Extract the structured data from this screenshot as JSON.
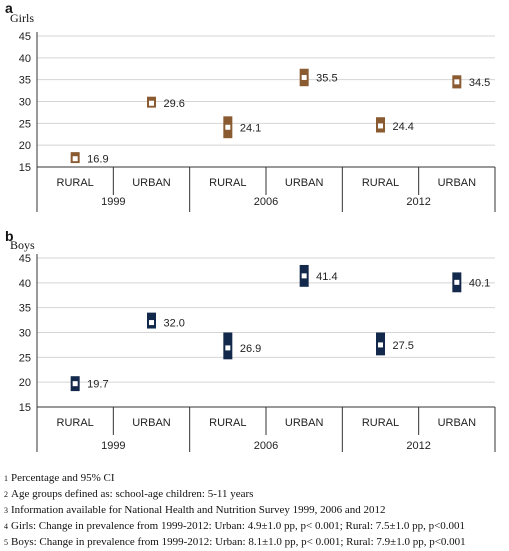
{
  "chart_data": [
    {
      "type": "scatter",
      "panel_letter": "a",
      "title": "Girls",
      "ylim": [
        15,
        45
      ],
      "yticks": [
        15,
        20,
        25,
        30,
        35,
        40,
        45
      ],
      "grid": true,
      "categories": [
        "RURAL",
        "URBAN",
        "RURAL",
        "URBAN",
        "RURAL",
        "URBAN"
      ],
      "groups": [
        "1999",
        "2006",
        "2012"
      ],
      "values": [
        16.9,
        29.6,
        24.1,
        35.5,
        24.4,
        34.5
      ],
      "value_labels": [
        "16.9",
        "29.6",
        "24.1",
        "35.5",
        "24.4",
        "34.5"
      ],
      "ci_low": [
        15.9,
        28.6,
        21.6,
        33.5,
        22.9,
        33.0
      ],
      "ci_high": [
        18.4,
        31.1,
        26.6,
        37.5,
        26.4,
        36.0
      ],
      "color": "#8a5a30"
    },
    {
      "type": "scatter",
      "panel_letter": "b",
      "title": "Boys",
      "ylim": [
        15,
        45
      ],
      "yticks": [
        15,
        20,
        25,
        30,
        35,
        40,
        45
      ],
      "grid": true,
      "categories": [
        "RURAL",
        "URBAN",
        "RURAL",
        "URBAN",
        "RURAL",
        "URBAN"
      ],
      "groups": [
        "1999",
        "2006",
        "2012"
      ],
      "values": [
        19.7,
        32.0,
        26.9,
        41.4,
        27.5,
        40.1
      ],
      "value_labels": [
        "19.7",
        "32.0",
        "26.9",
        "41.4",
        "27.5",
        "40.1"
      ],
      "ci_low": [
        18.2,
        30.8,
        24.6,
        39.2,
        25.4,
        38.1
      ],
      "ci_high": [
        21.2,
        34.0,
        30.0,
        43.6,
        30.0,
        42.1
      ],
      "color": "#13294b"
    }
  ],
  "footnotes": [
    {
      "num": "1",
      "text": "Percentage and 95% CI"
    },
    {
      "num": "2",
      "text": "Age groups defined as: school-age children: 5-11 years"
    },
    {
      "num": "3",
      "text": "Information available for National Health and Nutrition Survey 1999, 2006 and 2012"
    },
    {
      "num": "4",
      "text": "Girls: Change in prevalence from 1999-2012: Urban: 4.9±1.0 pp, p< 0.001; Rural: 7.5±1.0 pp, p<0.001"
    },
    {
      "num": "5",
      "text": "Boys: Change in prevalence from 1999-2012: Urban: 8.1±1.0 pp, p< 0.001; Rural: 7.9±1.0 pp, p<0.001"
    }
  ]
}
